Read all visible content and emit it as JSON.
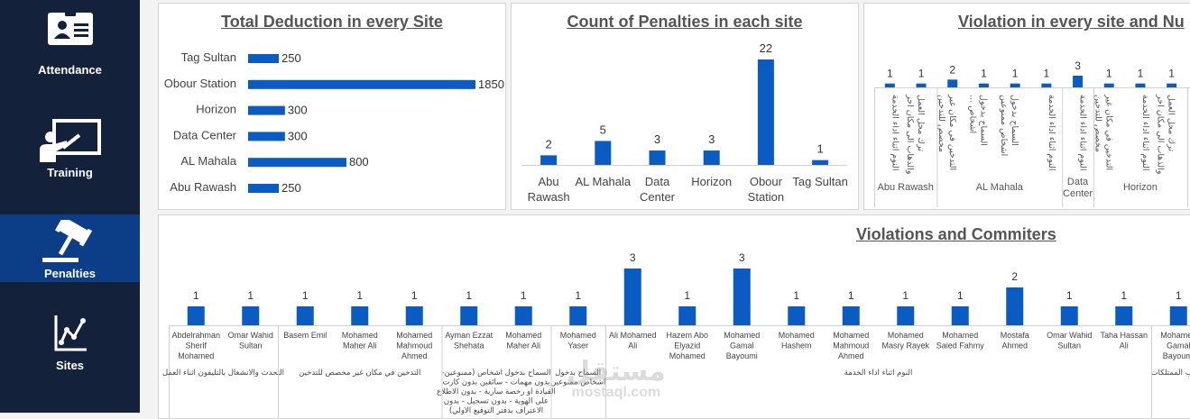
{
  "nav": {
    "items": [
      {
        "label": "Attendance",
        "icon": "id-card-icon"
      },
      {
        "label": "Training",
        "icon": "training-board-icon"
      },
      {
        "label": "Penalties",
        "icon": "gavel-icon",
        "active": true
      },
      {
        "label": "Sites",
        "icon": "line-chart-icon"
      }
    ],
    "active_color": "#0b3e86",
    "bg_color": "#14213a"
  },
  "charts": {
    "deduction": {
      "title": "Total Deduction in every Site",
      "chart_data": {
        "type": "bar",
        "orientation": "horizontal",
        "categories": [
          "Tag Sultan",
          "Obour Station",
          "Horizon",
          "Data Center",
          "AL Mahala",
          "Abu Rawash"
        ],
        "values": [
          250,
          1850,
          300,
          300,
          800,
          250
        ],
        "color": "#0a5cc2"
      }
    },
    "penalties_count": {
      "title": "Count of Penalties in each site",
      "chart_data": {
        "type": "bar",
        "categories": [
          [
            "Abu",
            "Rawash"
          ],
          [
            "AL Mahala"
          ],
          [
            "Data",
            "Center"
          ],
          [
            "Horizon"
          ],
          [
            "Obour",
            "Station"
          ],
          [
            "Tag Sultan"
          ]
        ],
        "values": [
          2,
          5,
          3,
          3,
          22,
          1
        ],
        "color": "#0a5cc2"
      }
    },
    "violation_site": {
      "title": "Violation in every site and Nu",
      "chart_data": {
        "type": "bar",
        "values": [
          1,
          1,
          2,
          1,
          1,
          1,
          3,
          1,
          1,
          1
        ],
        "rotated_labels": [
          [
            "النوم اثناء اداء الخدمة"
          ],
          [
            "ترك محل العمل",
            "والذهاب الى مكان اخر"
          ],
          [
            "التدخين في مكان غير",
            "مخصص للتدخين"
          ],
          [
            "السماح بدخول",
            "اشخاص ..."
          ],
          [
            "السماح بدخول",
            "اشخاص ممنوعين"
          ],
          [
            "النوم اثناء اداء الخدمة"
          ],
          [
            "النوم اثناء اداء الخدمة"
          ],
          [
            "التدخين في مكان غير",
            "مخصص للتدخين"
          ],
          [
            "النوم اثناء اداء الخدمة"
          ],
          [
            "ترك محل العمل",
            "والذهاب الى مكان اخر"
          ]
        ],
        "groups": [
          {
            "label": [
              "Abu Rawash"
            ],
            "count": 2
          },
          {
            "label": [
              "AL Mahala"
            ],
            "count": 4
          },
          {
            "label": [
              "Data",
              "Center"
            ],
            "count": 1
          },
          {
            "label": [
              "Horizon"
            ],
            "count": 3
          }
        ],
        "color": "#0a5cc2"
      }
    },
    "commiters": {
      "title": "Violations and Commiters",
      "chart_data": {
        "type": "bar",
        "values": [
          1,
          1,
          1,
          1,
          1,
          1,
          1,
          1,
          3,
          1,
          3,
          1,
          1,
          1,
          1,
          2,
          1,
          1,
          1
        ],
        "categories": [
          [
            "Abdelrahman",
            "Sherif",
            "Mohamed"
          ],
          [
            "Omar Wahid",
            "Sultan"
          ],
          [
            "Basem Emil"
          ],
          [
            "Mohamed",
            "Maher Ali"
          ],
          [
            "Mohamed",
            "Mahmoud",
            "Ahmed"
          ],
          [
            "Ayman Ezzat",
            "Shehata"
          ],
          [
            "Mohamed",
            "Maher Ali"
          ],
          [
            "Mohamed",
            "Yaser"
          ],
          [
            "Ali Mohamed",
            "Ali"
          ],
          [
            "Hazem Abo",
            "Elyazid",
            "Mohamed"
          ],
          [
            "Mohamed",
            "Gamal",
            "Bayoumi"
          ],
          [
            "Mohamed",
            "Hashem"
          ],
          [
            "Mohamed",
            "Mahmoud",
            "Ahmed"
          ],
          [
            "Mohamed",
            "Masry Rayek"
          ],
          [
            "Mohamed",
            "Saied Fahmy"
          ],
          [
            "Mostafa",
            "Ahmed"
          ],
          [
            "Omar Wahid",
            "Sultan"
          ],
          [
            "Taha Hassan",
            "Ali"
          ],
          [
            "Mohamed",
            "Gamal",
            "Bayoumi"
          ]
        ],
        "groups": [
          {
            "count": 2,
            "label": [
              "التحدث والانشغال بالتليفون اثناء العمل"
            ]
          },
          {
            "count": 3,
            "label": [
              "التدخين في مكان غير مخصص للتدخين"
            ]
          },
          {
            "count": 2,
            "label": [
              "السماح بدخول اشخاص (ممنوعين-",
              "بدون مهمات - سائقين بدون كارت",
              "القيادة او رخصة سارية - بدون الاطلاع",
              "على الهوية - بدون تسجيل - بدون",
              "الاعتراف بدفتر التوقيع الاولي)"
            ]
          },
          {
            "count": 1,
            "label": [
              "السماح بدخول",
              "اشخاص ممنوعين"
            ]
          },
          {
            "count": 10,
            "label": [
              "النوم اثناء اداء الخدمة"
            ]
          },
          {
            "count": 1,
            "label": [
              "تخريب الممتلكات"
            ]
          }
        ],
        "color": "#0a5cc2"
      }
    }
  },
  "watermark": {
    "arabic": "مستقل",
    "latin": "mostaql.com"
  }
}
